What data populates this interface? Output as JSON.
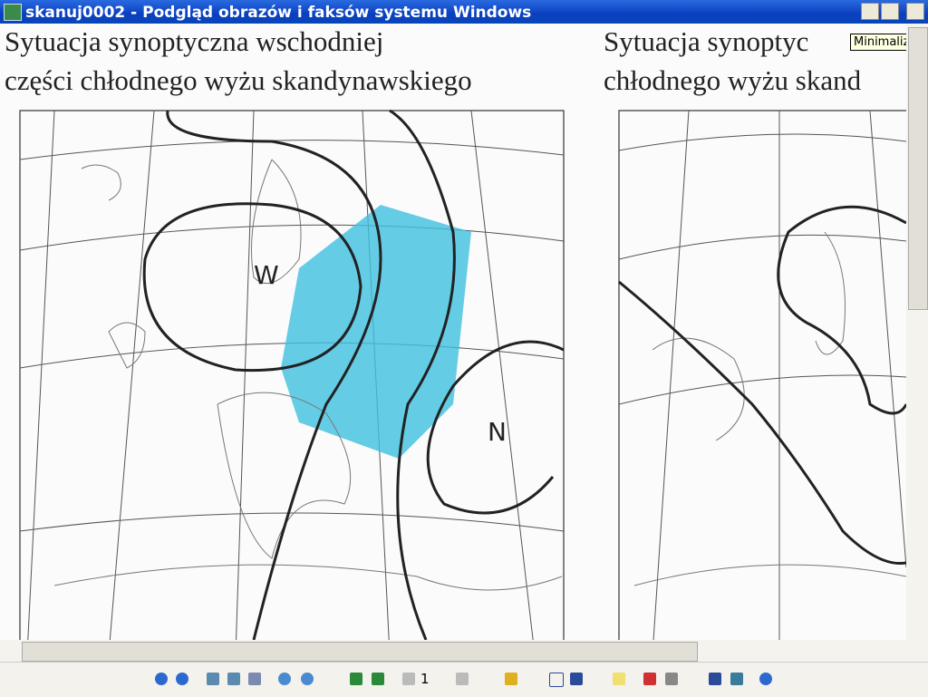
{
  "window": {
    "title": "skanuj0002 - Podgląd obrazów i faksów systemu Windows",
    "tooltip": "Minimalizuj"
  },
  "left_map": {
    "title_lines": [
      "Sytuacja synoptyczna wschodniej",
      "części chłodnego wyżu skandynawskiego"
    ],
    "labels": [
      "W",
      "N"
    ]
  },
  "right_map": {
    "title_lines": [
      "Sytuacja synoptyc",
      "chłodnego wyżu skand"
    ]
  },
  "toolbar": {
    "page": "1"
  }
}
